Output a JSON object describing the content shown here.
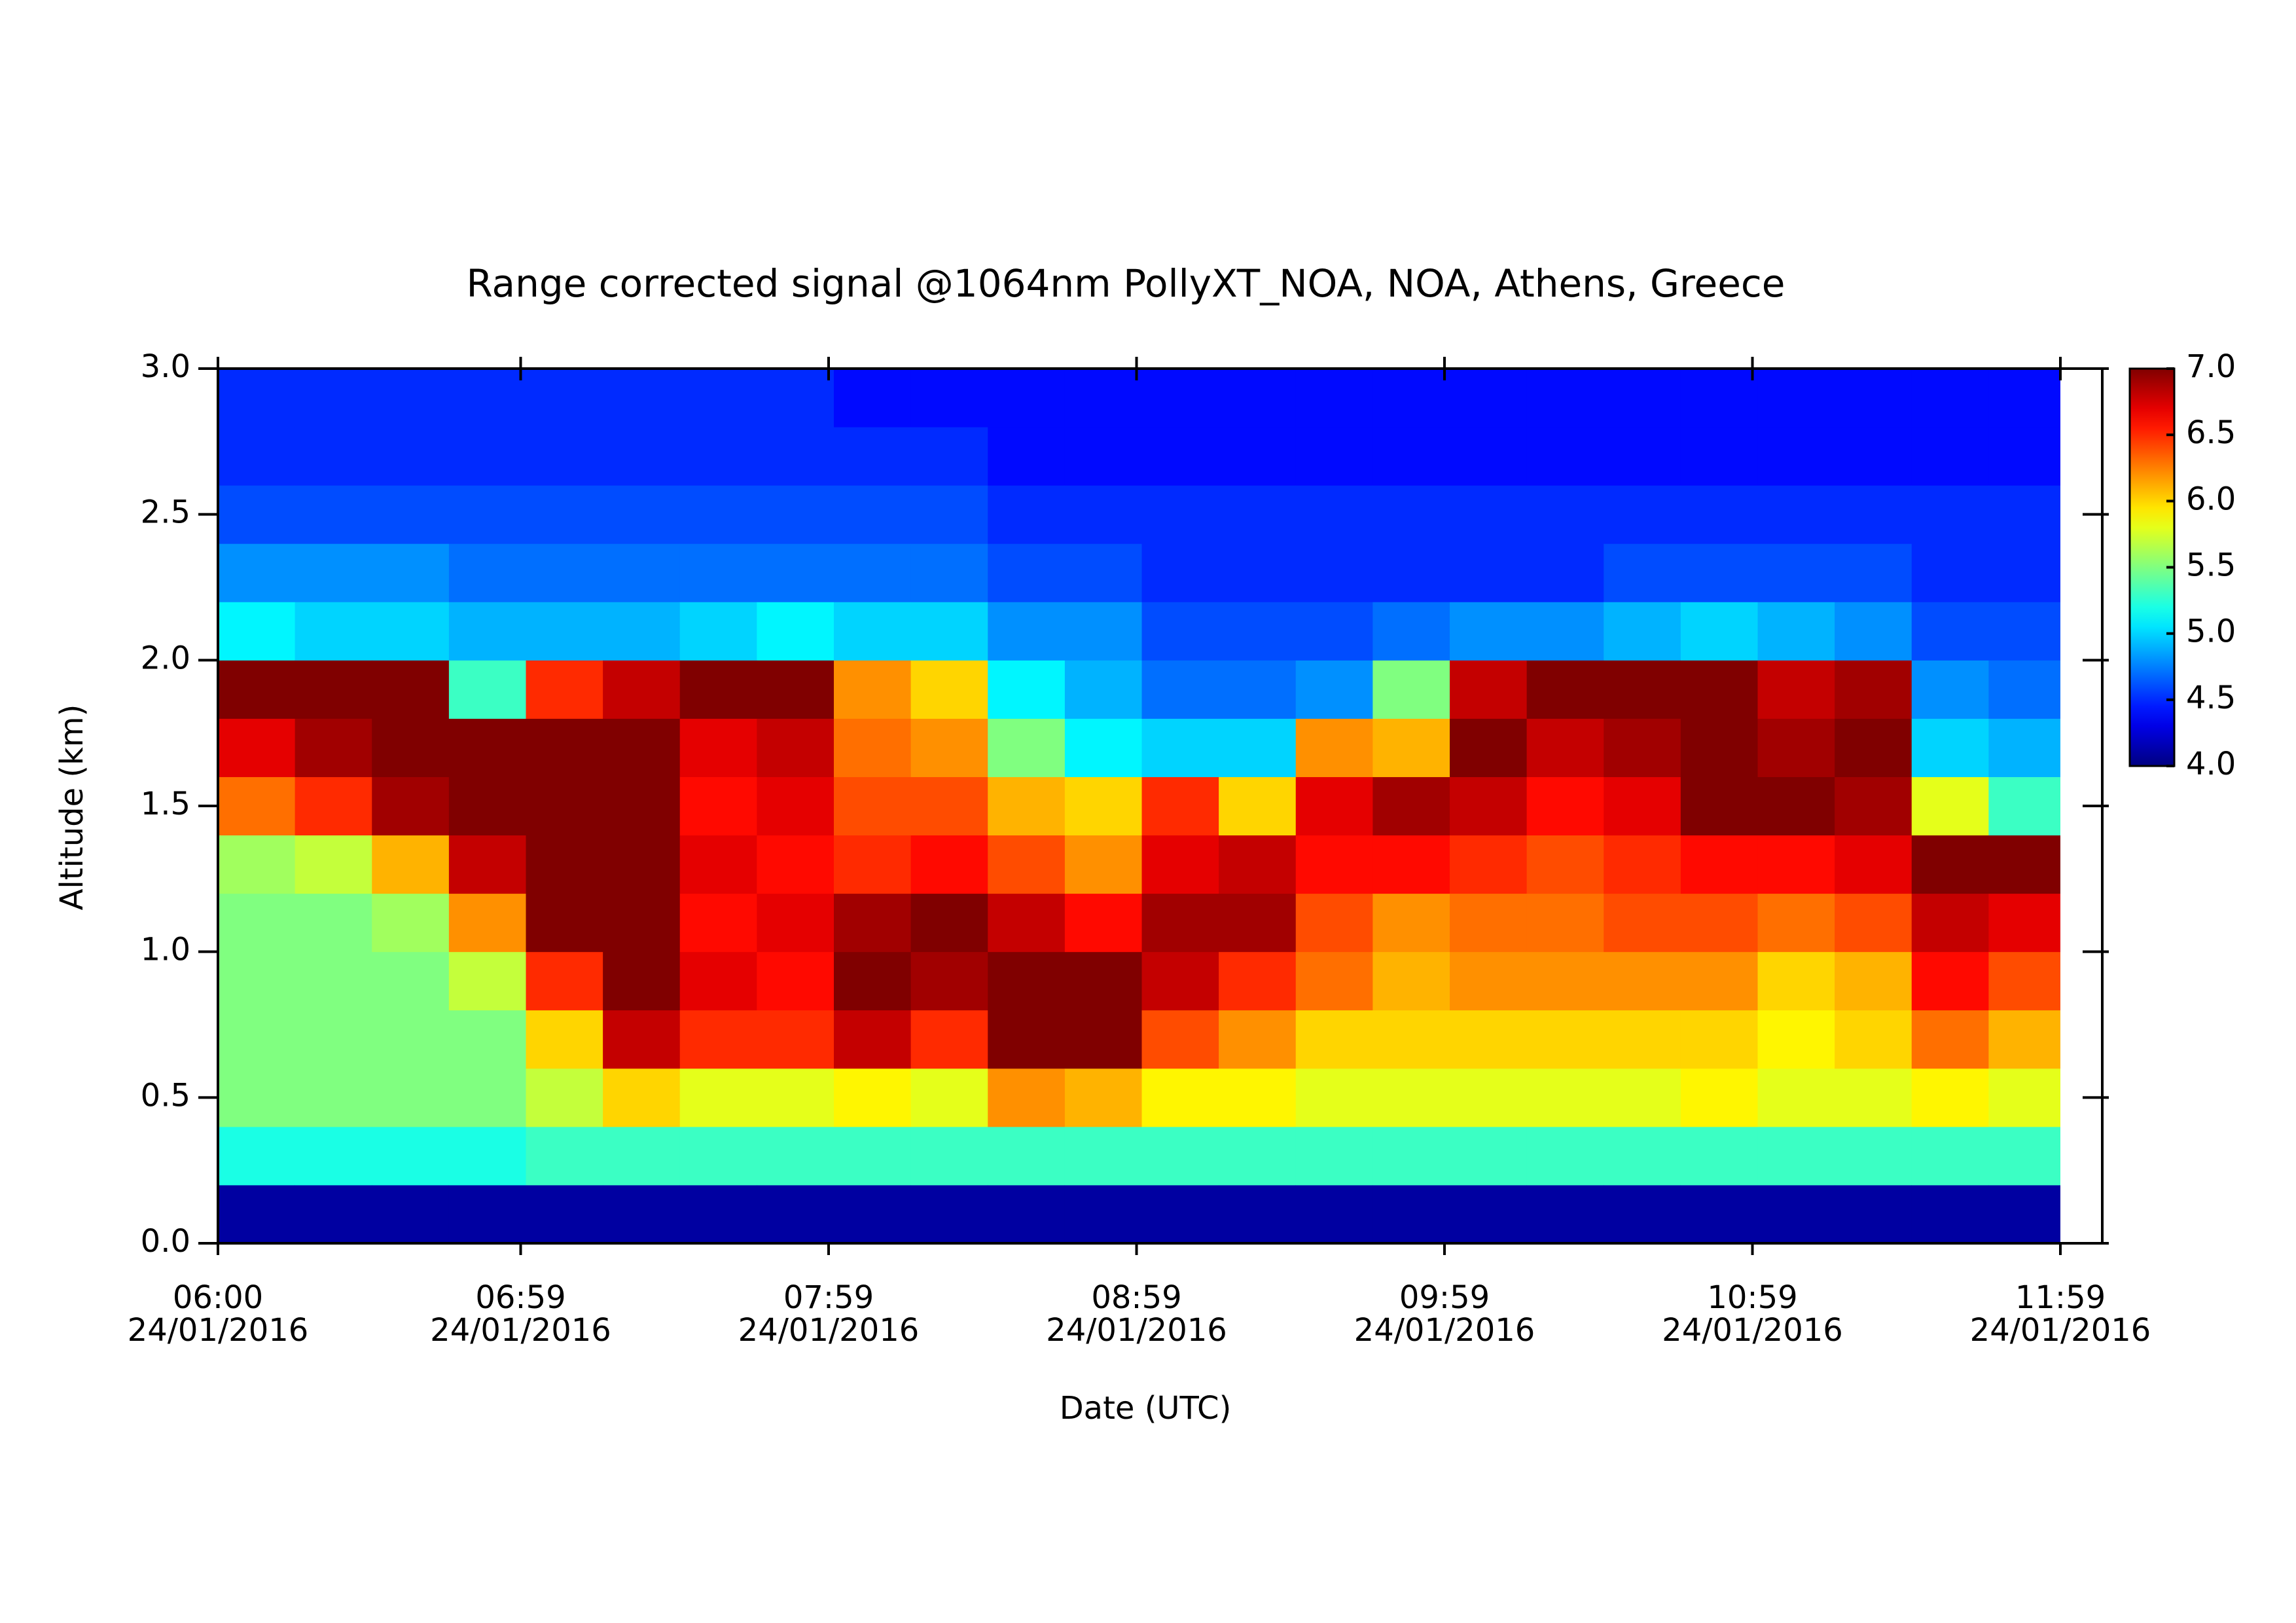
{
  "chart_data": {
    "type": "heatmap",
    "title": "Range corrected signal @1064nm  PollyXT_NOA, NOA, Athens, Greece",
    "xlabel": "Date (UTC)",
    "ylabel": "Altitude (km)",
    "colormap": "jet",
    "x": [
      6,
      6.25,
      6.5,
      6.75,
      7,
      7.25,
      7.5,
      7.75,
      8,
      8.25,
      8.5,
      8.75,
      9,
      9.25,
      9.5,
      9.75,
      10,
      10.25,
      10.5,
      10.75,
      11,
      11.25,
      11.5,
      11.75
    ],
    "y": [
      0,
      0.2,
      0.4,
      0.6,
      0.8,
      1.0,
      1.2,
      1.4,
      1.6,
      1.8,
      2.0,
      2.2,
      2.4,
      2.6,
      2.8
    ],
    "z": [
      [
        4.1,
        5.2,
        5.5,
        5.5,
        5.5,
        5.5,
        5.6,
        6.3,
        6.7,
        7.0,
        5.1,
        4.8,
        4.6,
        4.5,
        4.5
      ],
      [
        4.1,
        5.2,
        5.5,
        5.5,
        5.5,
        5.5,
        5.7,
        6.5,
        6.9,
        7.0,
        5.0,
        4.8,
        4.6,
        4.5,
        4.5
      ],
      [
        4.1,
        5.2,
        5.5,
        5.5,
        5.5,
        5.6,
        6.1,
        6.9,
        7.0,
        7.0,
        5.0,
        4.8,
        4.6,
        4.5,
        4.5
      ],
      [
        4.1,
        5.2,
        5.5,
        5.5,
        5.7,
        6.2,
        6.8,
        7.0,
        7.0,
        5.3,
        4.9,
        4.7,
        4.6,
        4.5,
        4.5
      ],
      [
        4.1,
        5.3,
        5.7,
        6.0,
        6.5,
        7.0,
        7.0,
        7.0,
        7.0,
        6.5,
        4.9,
        4.7,
        4.6,
        4.5,
        4.5
      ],
      [
        4.1,
        5.3,
        6.0,
        6.8,
        7.0,
        7.0,
        7.0,
        7.0,
        7.0,
        6.8,
        4.9,
        4.7,
        4.6,
        4.5,
        4.5
      ],
      [
        4.1,
        5.3,
        5.8,
        6.5,
        6.7,
        6.6,
        6.7,
        6.6,
        6.7,
        7.0,
        5.0,
        4.7,
        4.6,
        4.5,
        4.5
      ],
      [
        4.1,
        5.3,
        5.8,
        6.5,
        6.6,
        6.7,
        6.6,
        6.7,
        6.8,
        7.0,
        5.1,
        4.7,
        4.6,
        4.5,
        4.5
      ],
      [
        4.1,
        5.3,
        5.9,
        6.8,
        7.0,
        6.9,
        6.5,
        6.4,
        6.3,
        6.2,
        5.0,
        4.7,
        4.6,
        4.5,
        4.4
      ],
      [
        4.1,
        5.3,
        5.8,
        6.5,
        6.9,
        7.0,
        6.6,
        6.4,
        6.2,
        6.0,
        5.0,
        4.7,
        4.6,
        4.5,
        4.4
      ],
      [
        4.1,
        5.3,
        6.2,
        7.0,
        7.0,
        6.8,
        6.4,
        6.1,
        5.5,
        5.1,
        4.8,
        4.6,
        4.5,
        4.4,
        4.4
      ],
      [
        4.1,
        5.3,
        6.1,
        7.0,
        7.0,
        6.6,
        6.2,
        6.0,
        5.1,
        4.9,
        4.8,
        4.6,
        4.5,
        4.4,
        4.4
      ],
      [
        4.1,
        5.3,
        5.9,
        6.4,
        6.8,
        6.9,
        6.7,
        6.5,
        5.0,
        4.7,
        4.6,
        4.5,
        4.5,
        4.4,
        4.4
      ],
      [
        4.1,
        5.3,
        5.9,
        6.2,
        6.5,
        6.9,
        6.8,
        6.0,
        5.0,
        4.7,
        4.6,
        4.5,
        4.5,
        4.4,
        4.4
      ],
      [
        4.1,
        5.3,
        5.8,
        6.0,
        6.3,
        6.4,
        6.6,
        6.7,
        6.2,
        4.8,
        4.6,
        4.5,
        4.5,
        4.4,
        4.4
      ],
      [
        4.1,
        5.3,
        5.8,
        6.0,
        6.1,
        6.2,
        6.6,
        6.9,
        6.1,
        5.5,
        4.7,
        4.5,
        4.5,
        4.4,
        4.4
      ],
      [
        4.1,
        5.3,
        5.8,
        6.0,
        6.2,
        6.3,
        6.5,
        6.8,
        7.0,
        6.8,
        4.8,
        4.5,
        4.5,
        4.4,
        4.4
      ],
      [
        4.1,
        5.3,
        5.8,
        6.0,
        6.2,
        6.3,
        6.4,
        6.6,
        6.8,
        7.0,
        4.8,
        4.5,
        4.5,
        4.4,
        4.4
      ],
      [
        4.1,
        5.3,
        5.8,
        6.0,
        6.2,
        6.4,
        6.5,
        6.7,
        6.9,
        7.0,
        4.9,
        4.6,
        4.5,
        4.4,
        4.4
      ],
      [
        4.1,
        5.3,
        5.9,
        6.0,
        6.2,
        6.4,
        6.6,
        7.0,
        7.0,
        7.0,
        5.0,
        4.6,
        4.5,
        4.4,
        4.4
      ],
      [
        4.1,
        5.3,
        5.8,
        5.9,
        6.0,
        6.3,
        6.6,
        7.0,
        6.9,
        6.8,
        4.9,
        4.6,
        4.5,
        4.4,
        4.4
      ],
      [
        4.1,
        5.3,
        5.8,
        6.0,
        6.1,
        6.4,
        6.7,
        6.9,
        7.0,
        6.9,
        4.8,
        4.6,
        4.5,
        4.4,
        4.4
      ],
      [
        4.1,
        5.3,
        5.9,
        6.3,
        6.6,
        6.8,
        7.0,
        5.8,
        5.0,
        4.8,
        4.6,
        4.5,
        4.5,
        4.4,
        4.4
      ],
      [
        4.1,
        5.3,
        5.8,
        6.1,
        6.4,
        6.7,
        7.0,
        5.3,
        4.9,
        4.7,
        4.6,
        4.5,
        4.5,
        4.4,
        4.4
      ]
    ],
    "xlim": [
      6,
      11.983
    ],
    "xticks": [
      {
        "value": 6,
        "label": "06:00",
        "date": "24/01/2016"
      },
      {
        "value": 6.983,
        "label": "06:59",
        "date": "24/01/2016"
      },
      {
        "value": 7.983,
        "label": "07:59",
        "date": "24/01/2016"
      },
      {
        "value": 8.983,
        "label": "08:59",
        "date": "24/01/2016"
      },
      {
        "value": 9.983,
        "label": "09:59",
        "date": "24/01/2016"
      },
      {
        "value": 10.983,
        "label": "10:59",
        "date": "24/01/2016"
      },
      {
        "value": 11.983,
        "label": "11:59",
        "date": "24/01/2016"
      }
    ],
    "ylim": [
      0,
      3
    ],
    "yticks": [
      {
        "value": 0,
        "label": "0.0"
      },
      0.5,
      {
        "value": 1,
        "label": "1.0"
      },
      1.5,
      {
        "value": 2,
        "label": "2.0"
      },
      2.5,
      {
        "value": 3,
        "label": "3.0"
      }
    ],
    "zlim": [
      4,
      7
    ],
    "zticks": [
      {
        "value": 4,
        "label": "4.0"
      },
      4.5,
      {
        "value": 5,
        "label": "5.0"
      },
      5.5,
      {
        "value": 6,
        "label": "6.0"
      },
      6.5,
      {
        "value": 7,
        "label": "7.0"
      }
    ]
  }
}
